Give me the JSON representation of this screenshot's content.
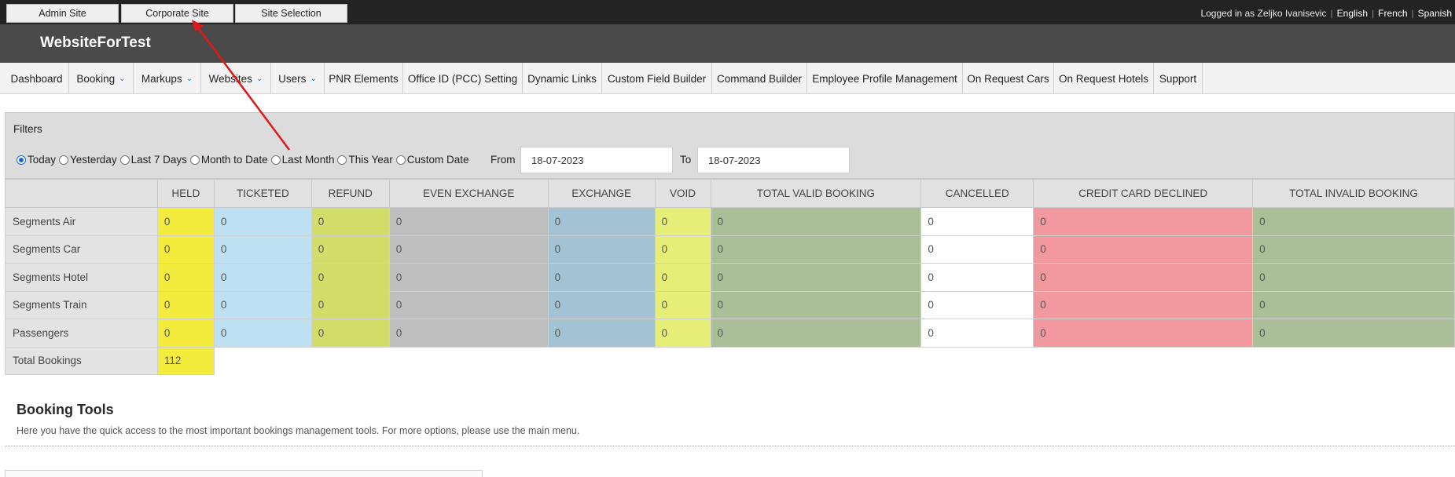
{
  "topbar": {
    "site_buttons": [
      "Admin Site",
      "Corporate Site",
      "Site Selection"
    ],
    "logged_in_text": "Logged in as Zeljko Ivanisevic",
    "languages": [
      "English",
      "French",
      "Spanish"
    ]
  },
  "header": {
    "title": "WebsiteForTest"
  },
  "nav": {
    "items": [
      {
        "label": "Dashboard",
        "dropdown": false
      },
      {
        "label": "Booking",
        "dropdown": true
      },
      {
        "label": "Markups",
        "dropdown": true
      },
      {
        "label": "Websites",
        "dropdown": true
      },
      {
        "label": "Users",
        "dropdown": true
      },
      {
        "label": "PNR Elements",
        "dropdown": false
      },
      {
        "label": "Office ID (PCC) Setting",
        "dropdown": false
      },
      {
        "label": "Dynamic Links",
        "dropdown": false
      },
      {
        "label": "Custom Field Builder",
        "dropdown": false
      },
      {
        "label": "Command Builder",
        "dropdown": false
      },
      {
        "label": "Employee Profile Management",
        "dropdown": false
      },
      {
        "label": "On Request Cars",
        "dropdown": false
      },
      {
        "label": "On Request Hotels",
        "dropdown": false
      },
      {
        "label": "Support",
        "dropdown": false
      }
    ]
  },
  "filters": {
    "title": "Filters",
    "periods": [
      {
        "label": "Today",
        "selected": true
      },
      {
        "label": "Yesterday",
        "selected": false
      },
      {
        "label": "Last 7 Days",
        "selected": false
      },
      {
        "label": "Month to Date",
        "selected": false
      },
      {
        "label": "Last Month",
        "selected": false
      },
      {
        "label": "This Year",
        "selected": false
      },
      {
        "label": "Custom Date",
        "selected": false
      }
    ],
    "from_label": "From",
    "from_value": "18-07-2023",
    "to_label": "To",
    "to_value": "18-07-2023"
  },
  "table": {
    "columns": [
      "HELD",
      "TICKETED",
      "REFUND",
      "EVEN EXCHANGE",
      "EXCHANGE",
      "VOID",
      "TOTAL VALID BOOKING",
      "CANCELLED",
      "CREDIT CARD DECLINED",
      "TOTAL INVALID BOOKING"
    ],
    "rows": [
      {
        "label": "Segments Air",
        "values": [
          "0",
          "0",
          "0",
          "0",
          "0",
          "0",
          "0",
          "0",
          "0",
          "0"
        ]
      },
      {
        "label": "Segments Car",
        "values": [
          "0",
          "0",
          "0",
          "0",
          "0",
          "0",
          "0",
          "0",
          "0",
          "0"
        ]
      },
      {
        "label": "Segments Hotel",
        "values": [
          "0",
          "0",
          "0",
          "0",
          "0",
          "0",
          "0",
          "0",
          "0",
          "0"
        ]
      },
      {
        "label": "Segments Train",
        "values": [
          "0",
          "0",
          "0",
          "0",
          "0",
          "0",
          "0",
          "0",
          "0",
          "0"
        ]
      },
      {
        "label": "Passengers",
        "values": [
          "0",
          "0",
          "0",
          "0",
          "0",
          "0",
          "0",
          "0",
          "0",
          "0"
        ]
      }
    ],
    "total_label": "Total Bookings",
    "total_value": "112",
    "column_colors": [
      "#f3ec3c",
      "#bde0f3",
      "#d3dd69",
      "#bfbfbf",
      "#a3c2d4",
      "#e6ee78",
      "#aabf98",
      "#ffffff",
      "#f1999e",
      "#aabf98"
    ]
  },
  "booking_tools": {
    "title": "Booking Tools",
    "description": "Here you have the quick access to the most important bookings management tools. For more options, please use the main menu."
  },
  "colors": {
    "topbar_bg": "#232323",
    "header_bg": "#4a4a4a",
    "annotation_arrow": "#e01818"
  }
}
